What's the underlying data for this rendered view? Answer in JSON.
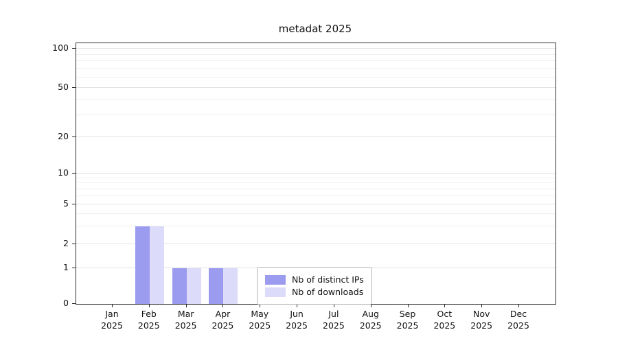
{
  "chart_data": {
    "type": "bar",
    "title": "metadat 2025",
    "months": [
      "Jan",
      "Feb",
      "Mar",
      "Apr",
      "May",
      "Jun",
      "Jul",
      "Aug",
      "Sep",
      "Oct",
      "Nov",
      "Dec"
    ],
    "year": "2025",
    "series": [
      {
        "name": "Nb of distinct IPs",
        "color": "#9b9bf0",
        "values": [
          0,
          3,
          1,
          1,
          0,
          0,
          0,
          0,
          0,
          0,
          0,
          0
        ]
      },
      {
        "name": "Nb of downloads",
        "color": "#dcdcfa",
        "values": [
          0,
          3,
          1,
          1,
          0,
          0,
          0,
          0,
          0,
          0,
          0,
          0
        ]
      }
    ],
    "yscale": "symlog",
    "yticks": [
      0,
      1,
      2,
      5,
      10,
      20,
      50,
      100
    ],
    "minor_gridlines": [
      3,
      4,
      6,
      7,
      8,
      9,
      30,
      40,
      60,
      70,
      80,
      90
    ],
    "ylim": [
      0,
      110
    ],
    "grid": "horizontal",
    "legend_position": "bottom-center"
  }
}
